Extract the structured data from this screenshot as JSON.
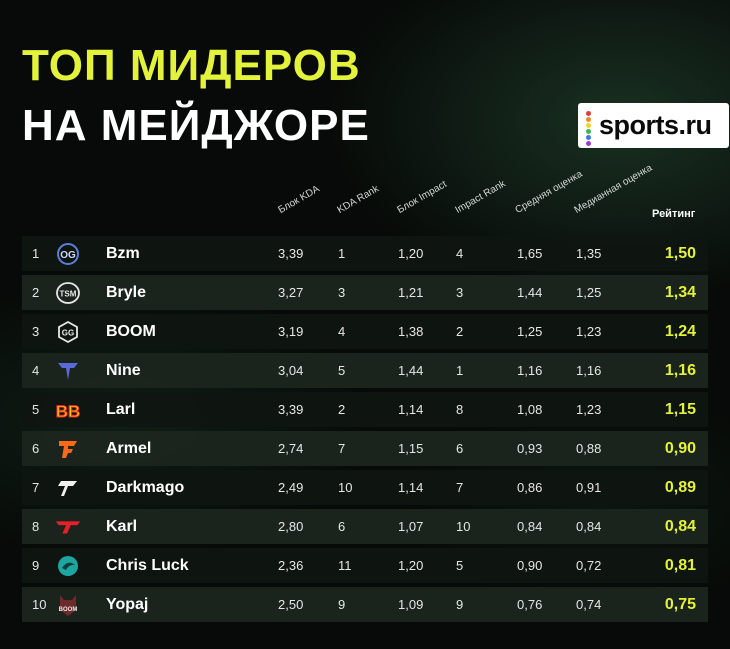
{
  "title": {
    "line1": "ТОП МИДЕРОВ",
    "line2": "НА МЕЙДЖОРЕ"
  },
  "brand": {
    "name": "sports.ru",
    "dots": [
      "#e23b3b",
      "#f08a24",
      "#f2d325",
      "#42b649",
      "#3a7be0",
      "#9a3fcf"
    ]
  },
  "colors": {
    "accent": "#e3f23a",
    "row_dark": "#0f1611",
    "row_light": "#1c261e"
  },
  "headers": {
    "kda_block": "Блок KDA",
    "kda_rank": "KDA Rank",
    "impact_block": "Блок Impact",
    "impact_rank": "Impact Rank",
    "avg_score": "Средняя оценка",
    "median_score": "Медианная оценка",
    "rating": "Рейтинг"
  },
  "rows": [
    {
      "rank": "1",
      "team_icon": "og-logo-icon",
      "name": "Bzm",
      "kda": "3,39",
      "kda_rank": "1",
      "impact": "1,20",
      "impact_rank": "4",
      "avg": "1,65",
      "median": "1,35",
      "rating": "1,50"
    },
    {
      "rank": "2",
      "team_icon": "tsm-logo-icon",
      "name": "Bryle",
      "kda": "3,27",
      "kda_rank": "3",
      "impact": "1,21",
      "impact_rank": "3",
      "avg": "1,44",
      "median": "1,25",
      "rating": "1,34"
    },
    {
      "rank": "3",
      "team_icon": "gaimin-gladiators-logo-icon",
      "name": "BOOM",
      "kda": "3,19",
      "kda_rank": "4",
      "impact": "1,38",
      "impact_rank": "2",
      "avg": "1,25",
      "median": "1,23",
      "rating": "1,24"
    },
    {
      "rank": "4",
      "team_icon": "tundra-logo-icon",
      "name": "Nine",
      "kda": "3,04",
      "kda_rank": "5",
      "impact": "1,44",
      "impact_rank": "1",
      "avg": "1,16",
      "median": "1,16",
      "rating": "1,16"
    },
    {
      "rank": "5",
      "team_icon": "betboom-logo-icon",
      "name": "Larl",
      "kda": "3,39",
      "kda_rank": "2",
      "impact": "1,14",
      "impact_rank": "8",
      "avg": "1,08",
      "median": "1,23",
      "rating": "1,15"
    },
    {
      "rank": "6",
      "team_icon": "fnatic-logo-icon",
      "name": "Armel",
      "kda": "2,74",
      "kda_rank": "7",
      "impact": "1,15",
      "impact_rank": "6",
      "avg": "0,93",
      "median": "0,88",
      "rating": "0,90"
    },
    {
      "rank": "7",
      "team_icon": "talon-logo-icon",
      "name": "Darkmago",
      "kda": "2,49",
      "kda_rank": "10",
      "impact": "1,14",
      "impact_rank": "7",
      "avg": "0,86",
      "median": "0,91",
      "rating": "0,89"
    },
    {
      "rank": "8",
      "team_icon": "t1-logo-icon",
      "name": "Karl",
      "kda": "2,80",
      "kda_rank": "6",
      "impact": "1,07",
      "impact_rank": "10",
      "avg": "0,84",
      "median": "0,84",
      "rating": "0,84"
    },
    {
      "rank": "9",
      "team_icon": "beastcoast-logo-icon",
      "name": "Chris Luck",
      "kda": "2,36",
      "kda_rank": "11",
      "impact": "1,20",
      "impact_rank": "5",
      "avg": "0,90",
      "median": "0,72",
      "rating": "0,81"
    },
    {
      "rank": "10",
      "team_icon": "boom-esports-logo-icon",
      "name": "Yopaj",
      "kda": "2,50",
      "kda_rank": "9",
      "impact": "1,09",
      "impact_rank": "9",
      "avg": "0,76",
      "median": "0,74",
      "rating": "0,75"
    }
  ]
}
